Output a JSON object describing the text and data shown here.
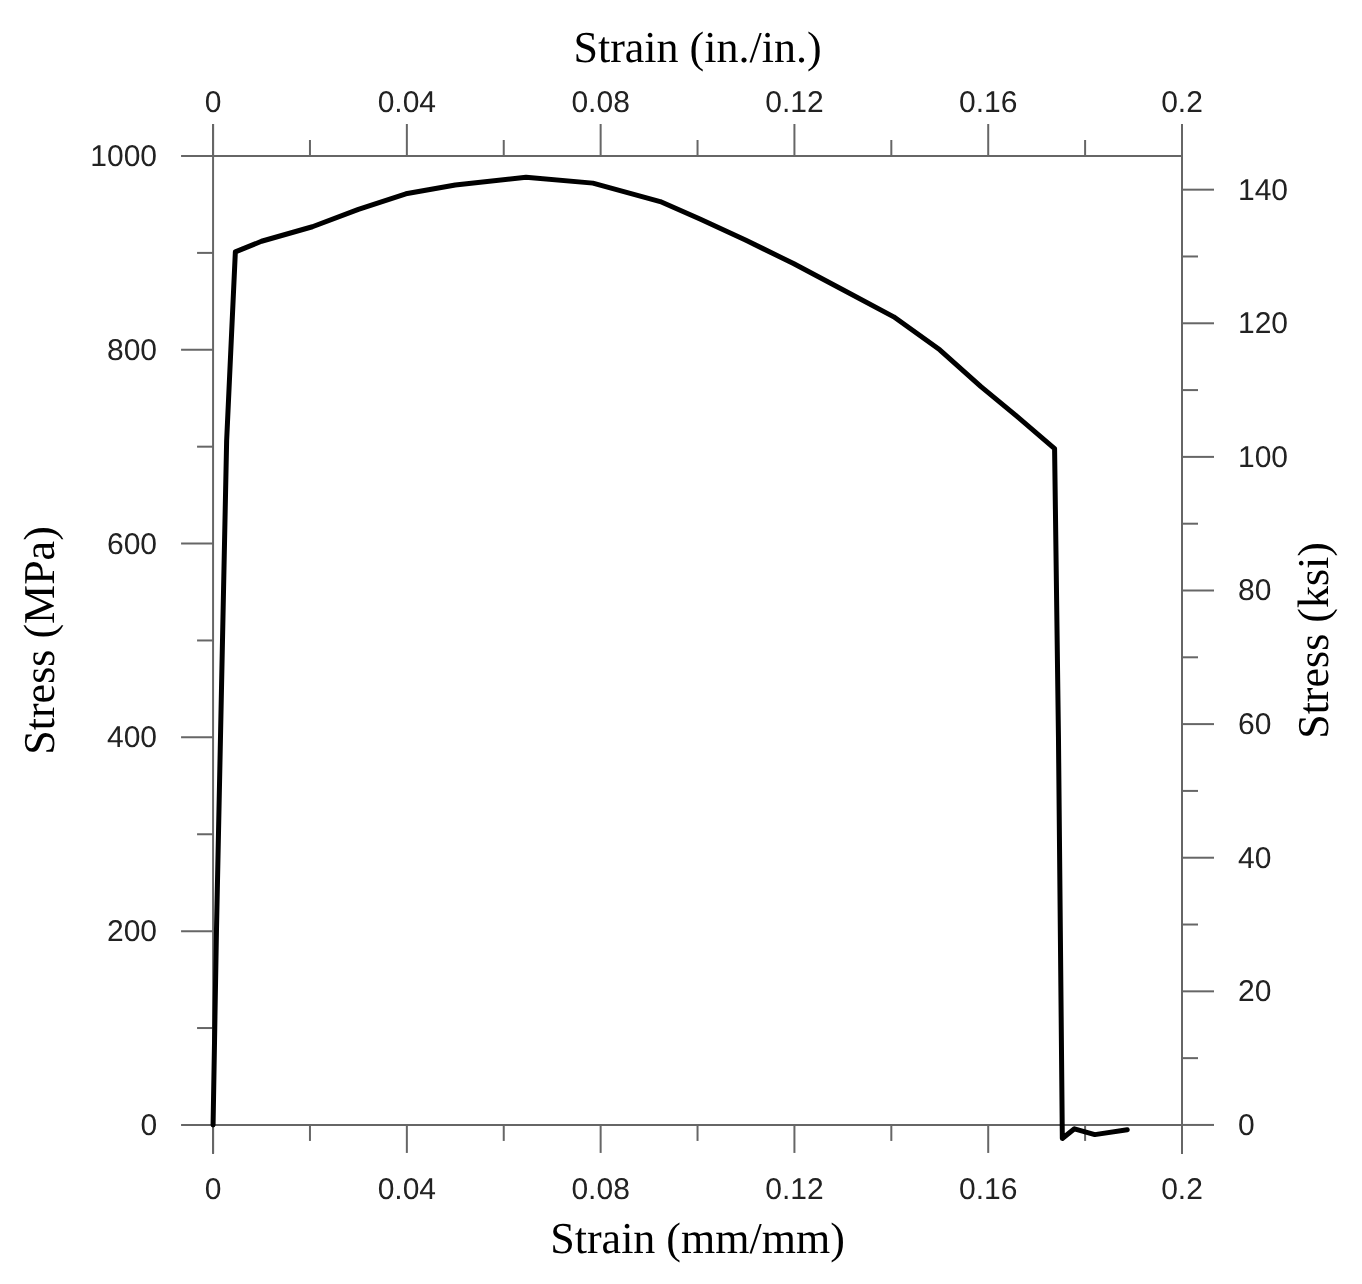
{
  "chart_data": {
    "type": "line",
    "xlabel": "Strain (mm/mm)",
    "x2label": "Strain (in./in.)",
    "ylabel": "Stress (MPa)",
    "y2label": "Stress (ksi)",
    "xlim": [
      -0.006,
      0.2
    ],
    "xticks": [
      0,
      {
        "value": 0.02,
        "label": null
      },
      0.04,
      {
        "value": 0.06,
        "label": null
      },
      0.08,
      {
        "value": 0.1,
        "label": null
      },
      0.12,
      {
        "value": 0.14,
        "label": null
      },
      0.16,
      {
        "value": 0.18,
        "label": null
      },
      0.2
    ],
    "x2lim": [
      -0.006,
      0.2
    ],
    "x2ticks": [
      0,
      {
        "value": 0.02,
        "label": null
      },
      0.04,
      {
        "value": 0.06,
        "label": null
      },
      0.08,
      {
        "value": 0.1,
        "label": null
      },
      0.12,
      {
        "value": 0.14,
        "label": null
      },
      0.16,
      {
        "value": 0.18,
        "label": null
      },
      0.2
    ],
    "ylim": [
      -30,
      1000
    ],
    "yticks": [
      0,
      {
        "value": 100,
        "label": null
      },
      200,
      {
        "value": 300,
        "label": null
      },
      400,
      {
        "value": 500,
        "label": null
      },
      600,
      {
        "value": 700,
        "label": null
      },
      800,
      {
        "value": 900,
        "label": null
      },
      1000
    ],
    "y2lim": [
      -4.35,
      145.04
    ],
    "y2ticks": [
      0,
      {
        "value": 10,
        "label": null
      },
      20,
      {
        "value": 30,
        "label": null
      },
      40,
      {
        "value": 50,
        "label": null
      },
      60,
      {
        "value": 70,
        "label": null
      },
      80,
      {
        "value": 90,
        "label": null
      },
      100,
      {
        "value": 110,
        "label": null
      },
      120,
      {
        "value": 130,
        "label": null
      },
      140
    ],
    "marker": "none",
    "line_style": "solid",
    "series": [
      {
        "color": "#000000",
        "x": [
          0,
          0.0007,
          0.0028,
          0.0046,
          0.01,
          0.0205,
          0.03,
          0.0398,
          0.05,
          0.0646,
          0.0784,
          0.0923,
          0.1005,
          0.11,
          0.1198,
          0.13,
          0.1405,
          0.15,
          0.1585,
          0.166,
          0.1737,
          0.1745,
          0.1753,
          0.1778,
          0.182,
          0.1887
        ],
        "values": [
          0,
          200,
          706,
          901,
          912,
          927,
          945,
          961,
          970,
          978,
          972,
          953,
          935,
          913,
          889,
          862,
          834,
          800,
          762,
          731,
          698,
          400,
          -14,
          -4,
          -10,
          -5
        ]
      }
    ]
  }
}
